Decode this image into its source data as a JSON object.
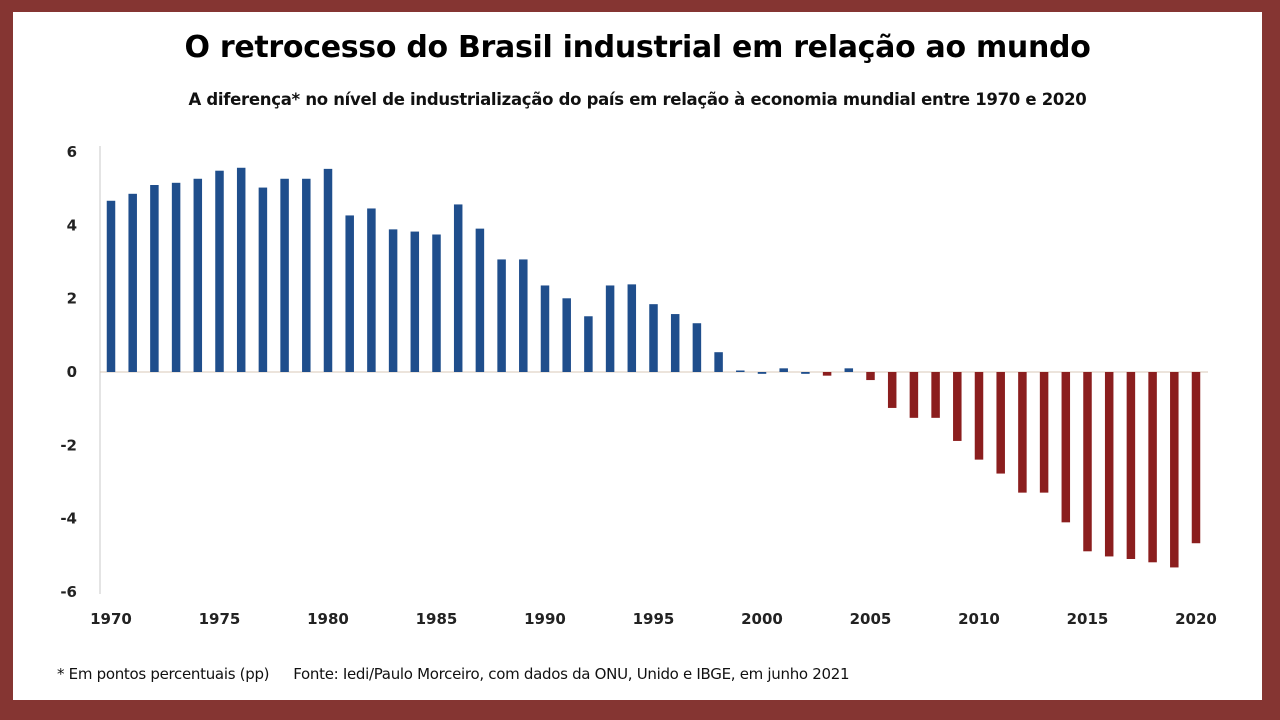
{
  "colors": {
    "frame": "#853532",
    "positive_bar": "#1F4E8C",
    "negative_bar": "#8B1E1E",
    "axis": "#c8c8c8"
  },
  "chart_data": {
    "type": "bar",
    "title": "O retrocesso do Brasil industrial em relação ao mundo",
    "subtitle": "A diferença* no nível de industrialização do país em relação à economia mundial entre 1970 e 2020",
    "xlabel": "",
    "ylabel": "",
    "ylim": [
      -6,
      6
    ],
    "yticks": [
      "6",
      "4",
      "2",
      "0",
      "-2",
      "-4",
      "-6"
    ],
    "ytick_values": [
      6,
      4,
      2,
      0,
      -2,
      -4,
      -6
    ],
    "xticks": [
      "1970",
      "1975",
      "1980",
      "1985",
      "1990",
      "1995",
      "2000",
      "2005",
      "2010",
      "2015",
      "2020"
    ],
    "grid": false,
    "legend": "none",
    "categories": [
      "1970",
      "1971",
      "1972",
      "1973",
      "1974",
      "1975",
      "1976",
      "1977",
      "1978",
      "1979",
      "1980",
      "1981",
      "1982",
      "1983",
      "1984",
      "1985",
      "1986",
      "1987",
      "1988",
      "1989",
      "1990",
      "1991",
      "1992",
      "1993",
      "1994",
      "1995",
      "1996",
      "1997",
      "1998",
      "1999",
      "2000",
      "2001",
      "2002",
      "2003",
      "2004",
      "2005",
      "2006",
      "2007",
      "2008",
      "2009",
      "2010",
      "2011",
      "2012",
      "2013",
      "2014",
      "2015",
      "2016",
      "2017",
      "2018",
      "2019",
      "2020"
    ],
    "values": [
      4.67,
      4.86,
      5.1,
      5.16,
      5.27,
      5.49,
      5.57,
      5.03,
      5.27,
      5.27,
      5.54,
      4.27,
      4.46,
      3.89,
      3.83,
      3.75,
      4.57,
      3.91,
      3.07,
      3.07,
      2.36,
      2.01,
      1.52,
      2.36,
      2.39,
      1.85,
      1.58,
      1.33,
      0.54,
      0.03,
      -0.05,
      0.1,
      -0.05,
      -0.1,
      0.1,
      -0.22,
      -0.98,
      -1.25,
      -1.25,
      -1.88,
      -2.39,
      -2.77,
      -3.29,
      -3.29,
      -4.1,
      -4.89,
      -5.03,
      -5.1,
      -5.19,
      -5.33,
      -4.67
    ]
  },
  "footer": {
    "note": "* Em pontos percentuais (pp)",
    "source": "Fonte: Iedi/Paulo Morceiro, com dados da ONU, Unido e IBGE, em junho 2021"
  }
}
